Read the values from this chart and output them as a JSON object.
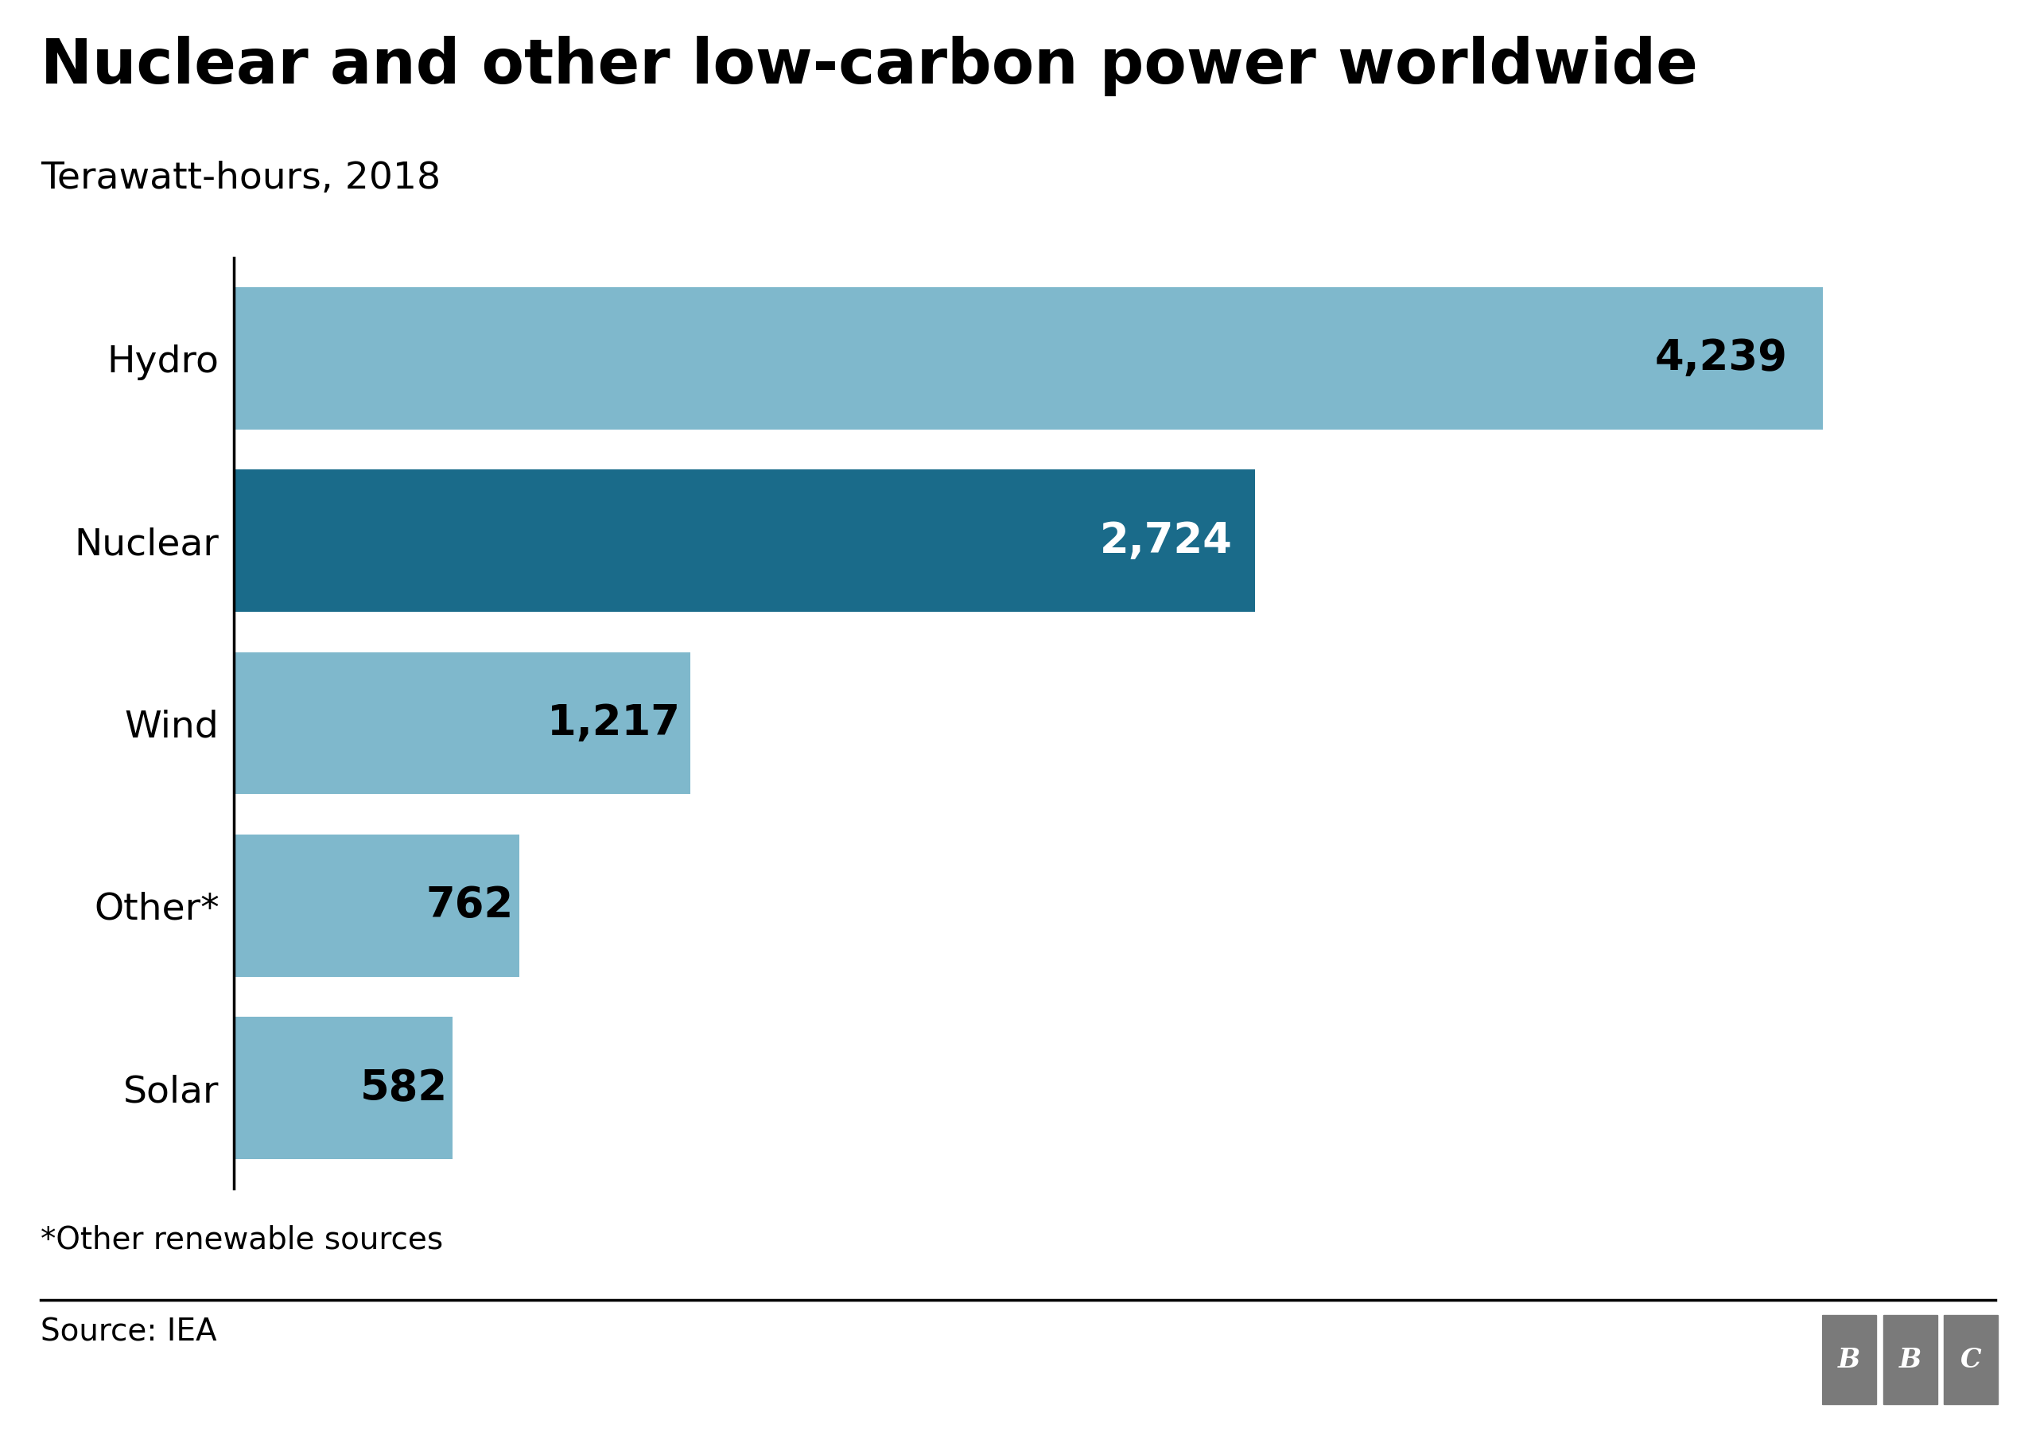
{
  "title": "Nuclear and other low-carbon power worldwide",
  "subtitle": "Terawatt-hours, 2018",
  "categories": [
    "Hydro",
    "Nuclear",
    "Wind",
    "Other*",
    "Solar"
  ],
  "values": [
    4239,
    2724,
    1217,
    762,
    582
  ],
  "labels": [
    "4,239",
    "2,724",
    "1,217",
    "762",
    "582"
  ],
  "bar_colors": [
    "#7fb8cc",
    "#1a6b8a",
    "#7fb8cc",
    "#7fb8cc",
    "#7fb8cc"
  ],
  "label_colors": [
    "#000000",
    "#ffffff",
    "#000000",
    "#000000",
    "#000000"
  ],
  "footnote": "*Other renewable sources",
  "source": "Source: IEA",
  "background_color": "#ffffff",
  "title_fontsize": 56,
  "subtitle_fontsize": 34,
  "label_fontsize": 38,
  "category_fontsize": 34,
  "footnote_fontsize": 28,
  "source_fontsize": 28,
  "xlim_max": 4700
}
